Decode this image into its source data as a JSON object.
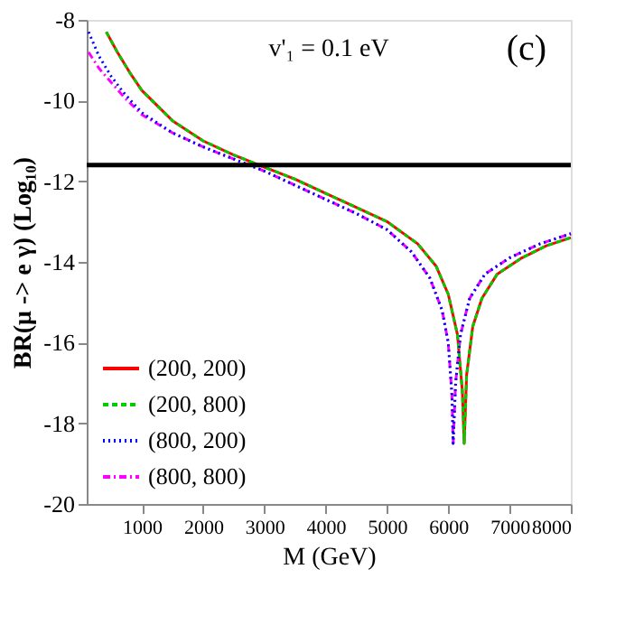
{
  "chart_data": {
    "type": "line",
    "xlabel": "M (GeV)",
    "ylabel": "BR(μ -> e γ) (Log₁₀)",
    "xlim": [
      100,
      8000
    ],
    "xticks": [
      1000,
      2000,
      3000,
      4000,
      5000,
      6000,
      7000,
      8000
    ],
    "ylim": [
      -20,
      -8
    ],
    "yticks": [
      -20,
      -18,
      -16,
      -14,
      -12,
      -10,
      -8
    ],
    "grid": false,
    "legend": "bottom left",
    "marker": "none",
    "annotations": [
      "v'₁ = 0.1 eV",
      "(c)"
    ],
    "ref_lines": [
      {
        "axis": "y",
        "value": -11.6,
        "color": "#000000",
        "line_style": "solid"
      }
    ],
    "series": [
      {
        "name": "(200, 200)",
        "color": "#ff0000",
        "line_style": "solid",
        "x": [
          420,
          600,
          800,
          1000,
          1500,
          2000,
          2500,
          3000,
          3500,
          4000,
          4500,
          5000,
          5500,
          5800,
          6000,
          6150,
          6230,
          6260,
          6300,
          6400,
          6550,
          6800,
          7200,
          7600,
          8000
        ],
        "values": [
          -8.3,
          -8.8,
          -9.3,
          -9.75,
          -10.5,
          -11.0,
          -11.35,
          -11.65,
          -11.95,
          -12.3,
          -12.65,
          -13.0,
          -13.55,
          -14.1,
          -14.8,
          -15.8,
          -17.2,
          -18.5,
          -16.8,
          -15.6,
          -14.9,
          -14.3,
          -13.9,
          -13.6,
          -13.4
        ]
      },
      {
        "name": "(200, 800)",
        "color": "#00cc00",
        "line_style": "dashed",
        "x": [
          420,
          600,
          800,
          1000,
          1500,
          2000,
          2500,
          3000,
          3500,
          4000,
          4500,
          5000,
          5500,
          5800,
          6000,
          6150,
          6230,
          6260,
          6300,
          6400,
          6550,
          6800,
          7200,
          7600,
          8000
        ],
        "values": [
          -8.3,
          -8.8,
          -9.3,
          -9.75,
          -10.5,
          -11.0,
          -11.35,
          -11.65,
          -11.95,
          -12.3,
          -12.65,
          -13.0,
          -13.55,
          -14.1,
          -14.8,
          -15.8,
          -17.2,
          -18.5,
          -16.8,
          -15.6,
          -14.9,
          -14.3,
          -13.9,
          -13.6,
          -13.4
        ]
      },
      {
        "name": "(800, 200)",
        "color": "#0000ff",
        "line_style": "dotted",
        "x": [
          130,
          300,
          500,
          700,
          1000,
          1500,
          2000,
          2500,
          3000,
          3500,
          4000,
          4500,
          5000,
          5400,
          5700,
          5900,
          6000,
          6060,
          6080,
          6120,
          6200,
          6350,
          6600,
          7000,
          7500,
          8000
        ],
        "values": [
          -8.3,
          -8.9,
          -9.4,
          -9.8,
          -10.3,
          -10.8,
          -11.15,
          -11.45,
          -11.75,
          -12.1,
          -12.45,
          -12.8,
          -13.2,
          -13.75,
          -14.4,
          -15.2,
          -16.0,
          -17.3,
          -18.5,
          -17.0,
          -15.8,
          -14.9,
          -14.3,
          -13.9,
          -13.55,
          -13.3
        ]
      },
      {
        "name": "(800, 800)",
        "color": "#ff00ff",
        "line_style": "dashdot",
        "x": [
          130,
          300,
          500,
          700,
          1000,
          1500,
          2000,
          2500,
          3000,
          3500,
          4000,
          4500,
          5000,
          5400,
          5700,
          5900,
          6000,
          6060,
          6080,
          6120,
          6200,
          6350,
          6600,
          7000,
          7500,
          8000
        ],
        "values": [
          -8.8,
          -9.2,
          -9.55,
          -9.9,
          -10.35,
          -10.8,
          -11.15,
          -11.45,
          -11.75,
          -12.1,
          -12.45,
          -12.8,
          -13.2,
          -13.75,
          -14.4,
          -15.2,
          -16.0,
          -17.3,
          -18.5,
          -17.0,
          -15.8,
          -14.9,
          -14.3,
          -13.9,
          -13.55,
          -13.3
        ]
      }
    ]
  }
}
